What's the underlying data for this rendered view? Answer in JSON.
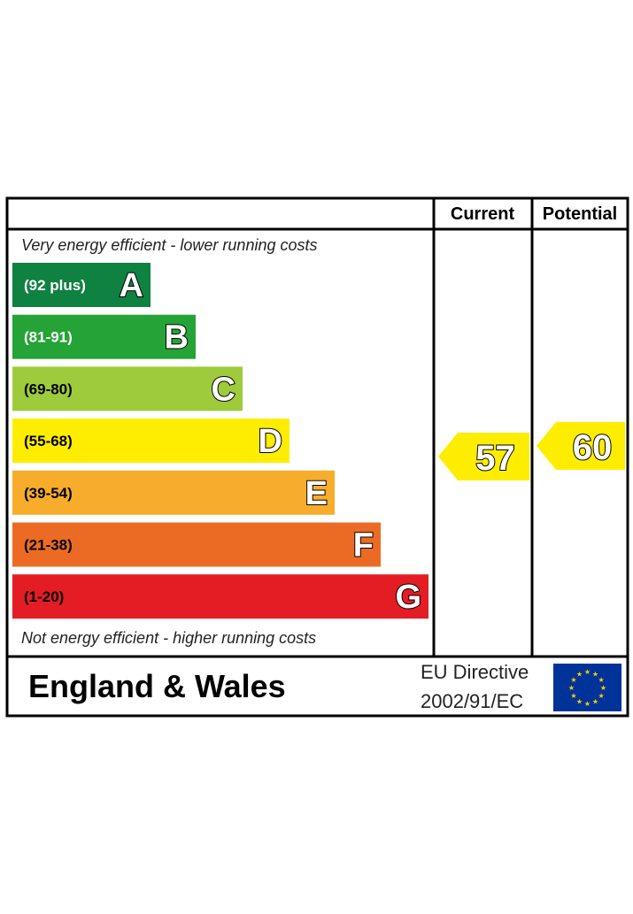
{
  "chart_data": {
    "type": "bar",
    "columns": {
      "current": "Current",
      "potential": "Potential"
    },
    "top_note": "Very energy efficient - lower running costs",
    "bottom_note": "Not energy efficient - higher running costs",
    "bands": [
      {
        "letter": "A",
        "range": "(92 plus)",
        "color": "#0f8140"
      },
      {
        "letter": "B",
        "range": "(81-91)",
        "color": "#26a337"
      },
      {
        "letter": "C",
        "range": "(69-80)",
        "color": "#9dcb3c"
      },
      {
        "letter": "D",
        "range": "(55-68)",
        "color": "#ffed00"
      },
      {
        "letter": "E",
        "range": "(39-54)",
        "color": "#f7ac2b"
      },
      {
        "letter": "F",
        "range": "(21-38)",
        "color": "#ec6b24"
      },
      {
        "letter": "G",
        "range": "(1-20)",
        "color": "#e31d23"
      }
    ],
    "current": {
      "value": 57,
      "band": "D",
      "color": "#ffed00"
    },
    "potential": {
      "value": 60,
      "band": "D",
      "color": "#ffed00"
    }
  },
  "footer": {
    "region": "England & Wales",
    "directive_line1": "EU Directive",
    "directive_line2": "2002/91/EC"
  },
  "colors": {
    "eu_flag": "#003399",
    "eu_star": "#ffcc00",
    "frame": "#000000"
  }
}
